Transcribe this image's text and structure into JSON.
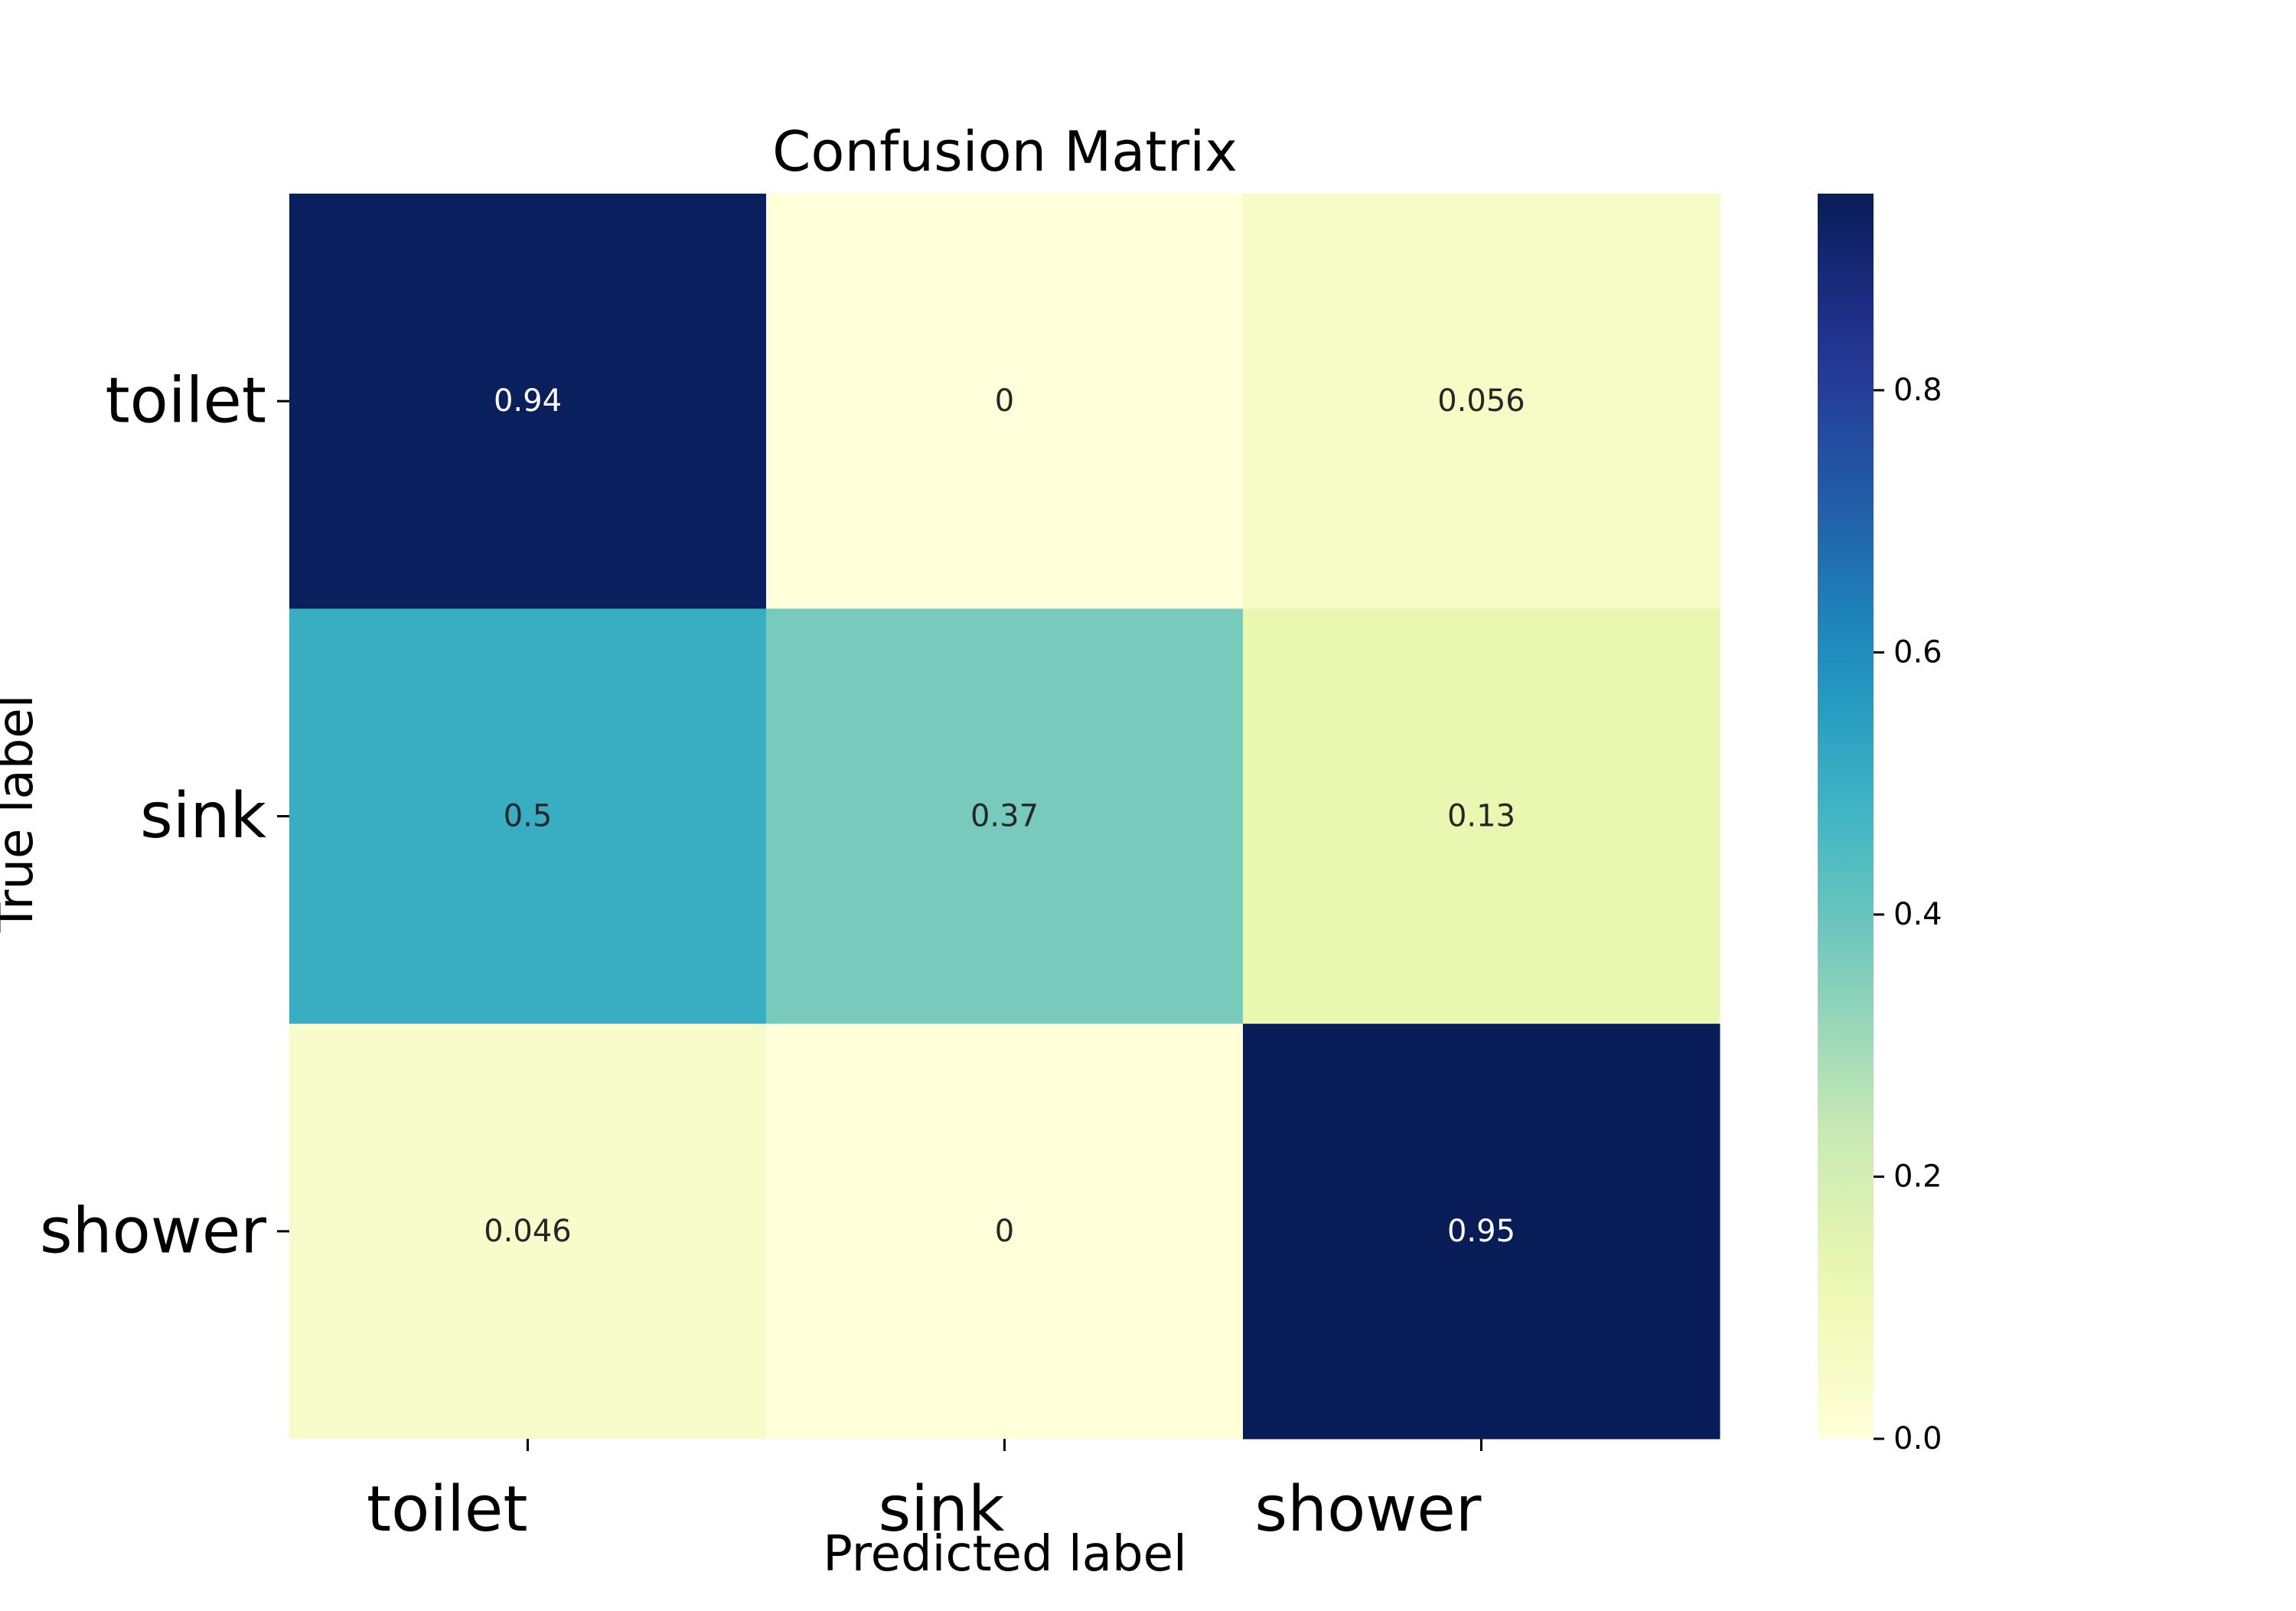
{
  "chart_data": {
    "type": "heatmap",
    "title": "Confusion Matrix",
    "xlabel": "Predicted label",
    "ylabel": "True label",
    "x_categories": [
      "toilet",
      "sink",
      "shower"
    ],
    "y_categories": [
      "toilet",
      "sink",
      "shower"
    ],
    "values": [
      [
        0.94,
        0,
        0.056
      ],
      [
        0.5,
        0.37,
        0.13
      ],
      [
        0.046,
        0,
        0.95
      ]
    ],
    "cell_labels": [
      [
        "0.94",
        "0",
        "0.056"
      ],
      [
        "0.5",
        "0.37",
        "0.13"
      ],
      [
        "0.046",
        "0",
        "0.95"
      ]
    ],
    "colormap": "YlGnBu",
    "colorbar": {
      "range": [
        0,
        0.95
      ],
      "ticks": [
        0.0,
        0.2,
        0.4,
        0.6,
        0.8
      ],
      "tick_labels": [
        "0.0",
        "0.2",
        "0.4",
        "0.6",
        "0.8"
      ]
    },
    "grid": false
  }
}
